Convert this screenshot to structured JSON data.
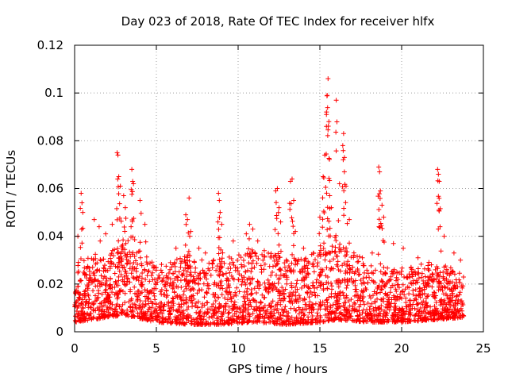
{
  "chart_data": {
    "type": "scatter",
    "title": "Day 023 of 2018, Rate Of TEC Index for receiver hlfx",
    "xlabel": "GPS time / hours",
    "ylabel": "ROTI / TECUs",
    "xlim": [
      0,
      25
    ],
    "ylim": [
      0,
      0.12
    ],
    "x_ticks": [
      0,
      5,
      10,
      15,
      20,
      25
    ],
    "x_tick_labels": [
      "0",
      "5",
      "10",
      "15",
      "20",
      "25"
    ],
    "y_ticks": [
      0,
      0.02,
      0.04,
      0.06,
      0.08,
      0.1,
      0.12
    ],
    "y_tick_labels": [
      "0",
      "0.02",
      "0.04",
      "0.06",
      "0.08",
      "0.1",
      "0.12"
    ],
    "grid": true,
    "marker": "+",
    "series_color": "#ff0000",
    "series": [
      {
        "name": "ROTI",
        "note": "dense scatter of ~5000 points between 0 and 23.8 h; listed points are the distinct peaks, the baseline band is summarised by band_envelope",
        "peaks": [
          {
            "x": 0.2,
            "y": 0.04
          },
          {
            "x": 0.4,
            "y": 0.058
          },
          {
            "x": 0.45,
            "y": 0.054
          },
          {
            "x": 0.5,
            "y": 0.05
          },
          {
            "x": 1.2,
            "y": 0.047
          },
          {
            "x": 1.5,
            "y": 0.044
          },
          {
            "x": 1.9,
            "y": 0.041
          },
          {
            "x": 2.3,
            "y": 0.045
          },
          {
            "x": 2.6,
            "y": 0.075
          },
          {
            "x": 2.65,
            "y": 0.074
          },
          {
            "x": 2.7,
            "y": 0.065
          },
          {
            "x": 2.8,
            "y": 0.061
          },
          {
            "x": 3.0,
            "y": 0.057
          },
          {
            "x": 3.1,
            "y": 0.052
          },
          {
            "x": 3.5,
            "y": 0.068
          },
          {
            "x": 3.55,
            "y": 0.063
          },
          {
            "x": 3.6,
            "y": 0.062
          },
          {
            "x": 4.0,
            "y": 0.055
          },
          {
            "x": 4.3,
            "y": 0.045
          },
          {
            "x": 6.2,
            "y": 0.035
          },
          {
            "x": 6.8,
            "y": 0.049
          },
          {
            "x": 6.9,
            "y": 0.047
          },
          {
            "x": 7.0,
            "y": 0.056
          },
          {
            "x": 7.1,
            "y": 0.042
          },
          {
            "x": 7.6,
            "y": 0.035
          },
          {
            "x": 8.0,
            "y": 0.033
          },
          {
            "x": 8.5,
            "y": 0.03
          },
          {
            "x": 8.8,
            "y": 0.058
          },
          {
            "x": 8.85,
            "y": 0.055
          },
          {
            "x": 8.9,
            "y": 0.05
          },
          {
            "x": 9.0,
            "y": 0.045
          },
          {
            "x": 9.7,
            "y": 0.038
          },
          {
            "x": 10.5,
            "y": 0.041
          },
          {
            "x": 10.7,
            "y": 0.045
          },
          {
            "x": 10.9,
            "y": 0.043
          },
          {
            "x": 11.2,
            "y": 0.038
          },
          {
            "x": 11.6,
            "y": 0.034
          },
          {
            "x": 12.3,
            "y": 0.059
          },
          {
            "x": 12.4,
            "y": 0.06
          },
          {
            "x": 12.5,
            "y": 0.052
          },
          {
            "x": 12.6,
            "y": 0.046
          },
          {
            "x": 13.2,
            "y": 0.063
          },
          {
            "x": 13.3,
            "y": 0.064
          },
          {
            "x": 13.4,
            "y": 0.055
          },
          {
            "x": 13.5,
            "y": 0.042
          },
          {
            "x": 14.0,
            "y": 0.035
          },
          {
            "x": 14.6,
            "y": 0.033
          },
          {
            "x": 15.0,
            "y": 0.048
          },
          {
            "x": 15.2,
            "y": 0.065
          },
          {
            "x": 15.3,
            "y": 0.074
          },
          {
            "x": 15.4,
            "y": 0.091
          },
          {
            "x": 15.45,
            "y": 0.099
          },
          {
            "x": 15.5,
            "y": 0.106
          },
          {
            "x": 15.55,
            "y": 0.088
          },
          {
            "x": 15.6,
            "y": 0.057
          },
          {
            "x": 15.7,
            "y": 0.052
          },
          {
            "x": 16.0,
            "y": 0.097
          },
          {
            "x": 16.2,
            "y": 0.062
          },
          {
            "x": 16.4,
            "y": 0.078
          },
          {
            "x": 16.45,
            "y": 0.083
          },
          {
            "x": 16.5,
            "y": 0.073
          },
          {
            "x": 16.6,
            "y": 0.061
          },
          {
            "x": 16.8,
            "y": 0.047
          },
          {
            "x": 17.6,
            "y": 0.031
          },
          {
            "x": 18.2,
            "y": 0.033
          },
          {
            "x": 18.6,
            "y": 0.069
          },
          {
            "x": 18.65,
            "y": 0.067
          },
          {
            "x": 18.7,
            "y": 0.059
          },
          {
            "x": 18.8,
            "y": 0.053
          },
          {
            "x": 18.9,
            "y": 0.048
          },
          {
            "x": 19.5,
            "y": 0.037
          },
          {
            "x": 20.1,
            "y": 0.035
          },
          {
            "x": 21.0,
            "y": 0.031
          },
          {
            "x": 22.2,
            "y": 0.068
          },
          {
            "x": 22.25,
            "y": 0.066
          },
          {
            "x": 22.3,
            "y": 0.063
          },
          {
            "x": 22.35,
            "y": 0.044
          },
          {
            "x": 22.6,
            "y": 0.04
          },
          {
            "x": 23.2,
            "y": 0.033
          },
          {
            "x": 23.6,
            "y": 0.03
          }
        ],
        "band_envelope": [
          {
            "x": 0.0,
            "y_min": 0.004,
            "y_max": 0.03
          },
          {
            "x": 2.0,
            "y_min": 0.006,
            "y_max": 0.032
          },
          {
            "x": 3.0,
            "y_min": 0.007,
            "y_max": 0.04
          },
          {
            "x": 5.0,
            "y_min": 0.004,
            "y_max": 0.028
          },
          {
            "x": 7.0,
            "y_min": 0.003,
            "y_max": 0.032
          },
          {
            "x": 9.0,
            "y_min": 0.003,
            "y_max": 0.03
          },
          {
            "x": 11.0,
            "y_min": 0.004,
            "y_max": 0.036
          },
          {
            "x": 13.0,
            "y_min": 0.003,
            "y_max": 0.03
          },
          {
            "x": 15.0,
            "y_min": 0.004,
            "y_max": 0.034
          },
          {
            "x": 16.0,
            "y_min": 0.005,
            "y_max": 0.04
          },
          {
            "x": 18.0,
            "y_min": 0.004,
            "y_max": 0.028
          },
          {
            "x": 20.0,
            "y_min": 0.004,
            "y_max": 0.026
          },
          {
            "x": 22.0,
            "y_min": 0.005,
            "y_max": 0.03
          },
          {
            "x": 23.8,
            "y_min": 0.006,
            "y_max": 0.025
          }
        ]
      }
    ]
  }
}
